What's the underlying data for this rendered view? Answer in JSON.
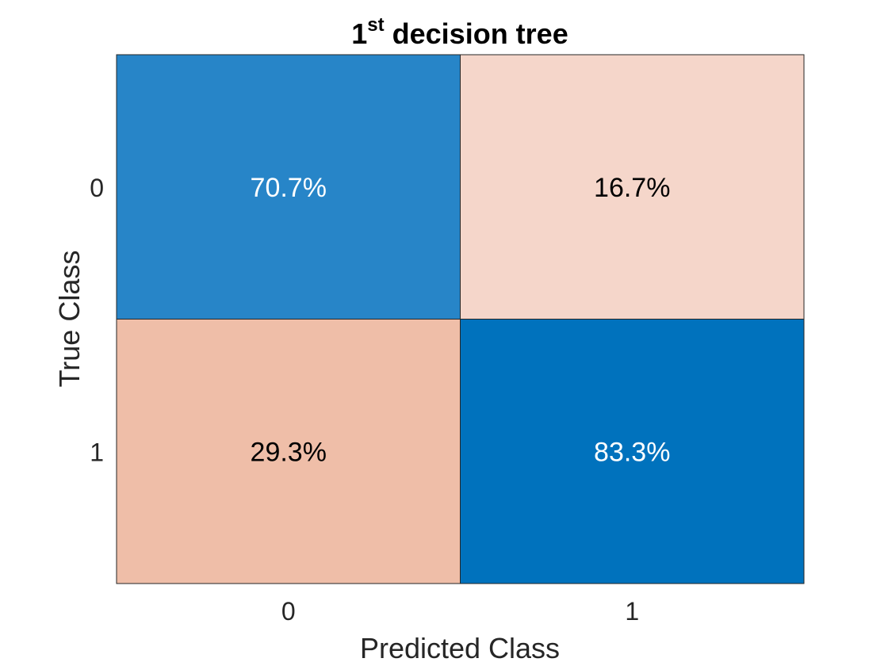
{
  "chart_data": {
    "type": "heatmap",
    "title": {
      "main": "1",
      "superscript": "st",
      "rest": " decision tree"
    },
    "xlabel": "Predicted Class",
    "ylabel": "True Class",
    "x_categories": [
      "0",
      "1"
    ],
    "y_categories": [
      "0",
      "1"
    ],
    "cells": [
      {
        "row": 0,
        "col": 0,
        "value": 70.7,
        "label": "70.7%",
        "color": "#2785C8",
        "text_color": "#FFFFFF"
      },
      {
        "row": 0,
        "col": 1,
        "value": 16.7,
        "label": "16.7%",
        "color": "#F5D6CA",
        "text_color": "#000000"
      },
      {
        "row": 1,
        "col": 0,
        "value": 29.3,
        "label": "29.3%",
        "color": "#EFBEA8",
        "text_color": "#000000"
      },
      {
        "row": 1,
        "col": 1,
        "value": 83.3,
        "label": "83.3%",
        "color": "#0072BD",
        "text_color": "#FFFFFF"
      }
    ],
    "grid_line_color": "#262626"
  }
}
